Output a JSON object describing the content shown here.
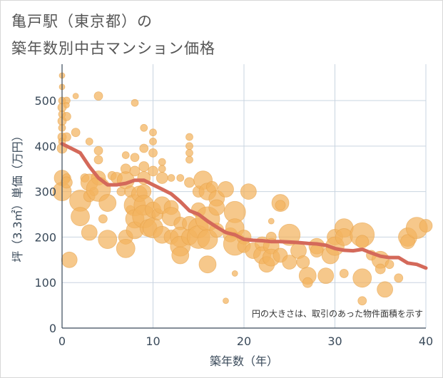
{
  "header": {
    "title_line1": "亀戸駅（東京都）の",
    "title_line2": "築年数別中古マンション価格"
  },
  "chart_data": {
    "type": "scatter",
    "title": "亀戸駅（東京都）の築年数別中古マンション価格",
    "xlabel": "築年数（年）",
    "ylabel": "坪（3.3㎡）単価（万円）",
    "xlim": [
      0,
      40
    ],
    "ylim": [
      0,
      580
    ],
    "x_ticks": [
      "0",
      "10",
      "20",
      "30",
      "40"
    ],
    "y_ticks": [
      "0",
      "100",
      "200",
      "300",
      "400",
      "500"
    ],
    "grid": true,
    "annotation": "円の大きさは、取引のあった物件面積を示す",
    "colors": {
      "points": "#f2b35e",
      "trend": "#d4695a"
    },
    "trend_line": {
      "x": [
        0,
        1,
        2,
        3,
        4,
        5,
        6,
        7,
        8,
        9,
        10,
        11,
        12,
        13,
        14,
        15,
        16,
        17,
        18,
        19,
        20,
        21,
        22,
        23,
        24,
        25,
        26,
        27,
        28,
        29,
        30,
        31,
        32,
        33,
        34,
        35,
        36,
        37,
        38,
        39,
        40
      ],
      "y": [
        405,
        395,
        385,
        355,
        330,
        315,
        315,
        318,
        325,
        325,
        315,
        305,
        295,
        278,
        258,
        250,
        235,
        222,
        210,
        205,
        195,
        193,
        192,
        190,
        190,
        189,
        188,
        186,
        185,
        182,
        175,
        171,
        170,
        173,
        165,
        158,
        155,
        155,
        143,
        140,
        132
      ]
    },
    "points": [
      {
        "x": 0,
        "y": 555,
        "s": 4
      },
      {
        "x": 0,
        "y": 530,
        "s": 4
      },
      {
        "x": 0,
        "y": 500,
        "s": 5
      },
      {
        "x": 0,
        "y": 485,
        "s": 6
      },
      {
        "x": 0,
        "y": 470,
        "s": 5
      },
      {
        "x": 0,
        "y": 455,
        "s": 6
      },
      {
        "x": 0,
        "y": 440,
        "s": 5
      },
      {
        "x": 0,
        "y": 420,
        "s": 6
      },
      {
        "x": 0,
        "y": 410,
        "s": 5
      },
      {
        "x": 0,
        "y": 395,
        "s": 7
      },
      {
        "x": 0,
        "y": 330,
        "s": 11
      },
      {
        "x": 0,
        "y": 300,
        "s": 13
      },
      {
        "x": 0.5,
        "y": 500,
        "s": 5
      },
      {
        "x": 0.5,
        "y": 490,
        "s": 4
      },
      {
        "x": 0.5,
        "y": 465,
        "s": 6
      },
      {
        "x": 0.5,
        "y": 420,
        "s": 6
      },
      {
        "x": 0.5,
        "y": 330,
        "s": 6
      },
      {
        "x": 0.5,
        "y": 320,
        "s": 8
      },
      {
        "x": 0.8,
        "y": 150,
        "s": 11
      },
      {
        "x": 1.5,
        "y": 510,
        "s": 4
      },
      {
        "x": 1.5,
        "y": 430,
        "s": 6
      },
      {
        "x": 2,
        "y": 280,
        "s": 15
      },
      {
        "x": 2,
        "y": 245,
        "s": 13
      },
      {
        "x": 2.5,
        "y": 330,
        "s": 6
      },
      {
        "x": 3,
        "y": 410,
        "s": 5
      },
      {
        "x": 3,
        "y": 320,
        "s": 12
      },
      {
        "x": 3,
        "y": 290,
        "s": 8
      },
      {
        "x": 3,
        "y": 210,
        "s": 11
      },
      {
        "x": 3.5,
        "y": 300,
        "s": 6
      },
      {
        "x": 4,
        "y": 510,
        "s": 6
      },
      {
        "x": 4,
        "y": 390,
        "s": 6
      },
      {
        "x": 4,
        "y": 370,
        "s": 6
      },
      {
        "x": 4,
        "y": 330,
        "s": 10
      },
      {
        "x": 4,
        "y": 305,
        "s": 17
      },
      {
        "x": 4.5,
        "y": 240,
        "s": 6
      },
      {
        "x": 5,
        "y": 275,
        "s": 12
      },
      {
        "x": 5,
        "y": 195,
        "s": 13
      },
      {
        "x": 5.5,
        "y": 335,
        "s": 6
      },
      {
        "x": 6,
        "y": 330,
        "s": 8
      },
      {
        "x": 6.5,
        "y": 300,
        "s": 6
      },
      {
        "x": 7,
        "y": 380,
        "s": 5
      },
      {
        "x": 7,
        "y": 350,
        "s": 7
      },
      {
        "x": 7,
        "y": 325,
        "s": 12
      },
      {
        "x": 7,
        "y": 200,
        "s": 10
      },
      {
        "x": 7,
        "y": 175,
        "s": 13
      },
      {
        "x": 7.5,
        "y": 300,
        "s": 8
      },
      {
        "x": 7.5,
        "y": 260,
        "s": 6
      },
      {
        "x": 8,
        "y": 495,
        "s": 5
      },
      {
        "x": 8,
        "y": 375,
        "s": 6
      },
      {
        "x": 8,
        "y": 345,
        "s": 7
      },
      {
        "x": 8,
        "y": 270,
        "s": 15
      },
      {
        "x": 8,
        "y": 240,
        "s": 13
      },
      {
        "x": 8,
        "y": 215,
        "s": 12
      },
      {
        "x": 8.5,
        "y": 295,
        "s": 11
      },
      {
        "x": 9,
        "y": 440,
        "s": 5
      },
      {
        "x": 9,
        "y": 395,
        "s": 6
      },
      {
        "x": 9,
        "y": 355,
        "s": 7
      },
      {
        "x": 9,
        "y": 330,
        "s": 9
      },
      {
        "x": 9,
        "y": 300,
        "s": 10
      },
      {
        "x": 9,
        "y": 270,
        "s": 14
      },
      {
        "x": 9,
        "y": 245,
        "s": 16
      },
      {
        "x": 9.5,
        "y": 220,
        "s": 12
      },
      {
        "x": 10,
        "y": 430,
        "s": 5
      },
      {
        "x": 10,
        "y": 410,
        "s": 5
      },
      {
        "x": 10,
        "y": 385,
        "s": 6
      },
      {
        "x": 10,
        "y": 345,
        "s": 7
      },
      {
        "x": 10,
        "y": 260,
        "s": 11
      },
      {
        "x": 10,
        "y": 220,
        "s": 14
      },
      {
        "x": 10.5,
        "y": 250,
        "s": 8
      },
      {
        "x": 11,
        "y": 365,
        "s": 5
      },
      {
        "x": 11,
        "y": 350,
        "s": 5
      },
      {
        "x": 11,
        "y": 330,
        "s": 8
      },
      {
        "x": 11,
        "y": 270,
        "s": 12
      },
      {
        "x": 11,
        "y": 205,
        "s": 12
      },
      {
        "x": 12,
        "y": 330,
        "s": 5
      },
      {
        "x": 12,
        "y": 265,
        "s": 10
      },
      {
        "x": 12,
        "y": 245,
        "s": 13
      },
      {
        "x": 12,
        "y": 200,
        "s": 10
      },
      {
        "x": 13,
        "y": 330,
        "s": 5
      },
      {
        "x": 13,
        "y": 230,
        "s": 9
      },
      {
        "x": 13,
        "y": 200,
        "s": 14
      },
      {
        "x": 13,
        "y": 180,
        "s": 14
      },
      {
        "x": 13,
        "y": 160,
        "s": 12
      },
      {
        "x": 14,
        "y": 420,
        "s": 5
      },
      {
        "x": 14,
        "y": 400,
        "s": 5
      },
      {
        "x": 14,
        "y": 385,
        "s": 5
      },
      {
        "x": 14,
        "y": 370,
        "s": 5
      },
      {
        "x": 14,
        "y": 320,
        "s": 7
      },
      {
        "x": 14,
        "y": 230,
        "s": 10
      },
      {
        "x": 14,
        "y": 200,
        "s": 11
      },
      {
        "x": 15,
        "y": 300,
        "s": 8
      },
      {
        "x": 15,
        "y": 260,
        "s": 10
      },
      {
        "x": 15,
        "y": 220,
        "s": 14
      },
      {
        "x": 15,
        "y": 200,
        "s": 16
      },
      {
        "x": 15.5,
        "y": 325,
        "s": 13
      },
      {
        "x": 16,
        "y": 300,
        "s": 12
      },
      {
        "x": 16,
        "y": 240,
        "s": 17
      },
      {
        "x": 16,
        "y": 195,
        "s": 14
      },
      {
        "x": 16,
        "y": 140,
        "s": 12
      },
      {
        "x": 16.5,
        "y": 310,
        "s": 8
      },
      {
        "x": 17,
        "y": 285,
        "s": 11
      },
      {
        "x": 17,
        "y": 265,
        "s": 11
      },
      {
        "x": 17,
        "y": 215,
        "s": 10
      },
      {
        "x": 18,
        "y": 305,
        "s": 11
      },
      {
        "x": 18,
        "y": 60,
        "s": 4
      },
      {
        "x": 18.5,
        "y": 205,
        "s": 10
      },
      {
        "x": 19,
        "y": 255,
        "s": 15
      },
      {
        "x": 19,
        "y": 220,
        "s": 13
      },
      {
        "x": 19,
        "y": 185,
        "s": 16
      },
      {
        "x": 19,
        "y": 120,
        "s": 4
      },
      {
        "x": 20,
        "y": 200,
        "s": 10
      },
      {
        "x": 20,
        "y": 180,
        "s": 9
      },
      {
        "x": 20.5,
        "y": 300,
        "s": 11
      },
      {
        "x": 21,
        "y": 170,
        "s": 11
      },
      {
        "x": 22,
        "y": 185,
        "s": 10
      },
      {
        "x": 22,
        "y": 160,
        "s": 12
      },
      {
        "x": 22.5,
        "y": 140,
        "s": 11
      },
      {
        "x": 23,
        "y": 235,
        "s": 4
      },
      {
        "x": 23,
        "y": 200,
        "s": 7
      },
      {
        "x": 23,
        "y": 180,
        "s": 11
      },
      {
        "x": 23,
        "y": 155,
        "s": 12
      },
      {
        "x": 24,
        "y": 275,
        "s": 12
      },
      {
        "x": 24,
        "y": 270,
        "s": 7
      },
      {
        "x": 24,
        "y": 160,
        "s": 10
      },
      {
        "x": 25,
        "y": 205,
        "s": 15
      },
      {
        "x": 25,
        "y": 145,
        "s": 10
      },
      {
        "x": 26,
        "y": 170,
        "s": 11
      },
      {
        "x": 26.5,
        "y": 145,
        "s": 9
      },
      {
        "x": 27,
        "y": 115,
        "s": 12
      },
      {
        "x": 27,
        "y": 100,
        "s": 7
      },
      {
        "x": 28,
        "y": 180,
        "s": 11
      },
      {
        "x": 28,
        "y": 170,
        "s": 9
      },
      {
        "x": 29,
        "y": 115,
        "s": 11
      },
      {
        "x": 29.5,
        "y": 160,
        "s": 12
      },
      {
        "x": 30,
        "y": 200,
        "s": 11
      },
      {
        "x": 30,
        "y": 180,
        "s": 13
      },
      {
        "x": 31,
        "y": 220,
        "s": 13
      },
      {
        "x": 31,
        "y": 200,
        "s": 12
      },
      {
        "x": 31,
        "y": 120,
        "s": 6
      },
      {
        "x": 33,
        "y": 205,
        "s": 17
      },
      {
        "x": 33,
        "y": 190,
        "s": 9
      },
      {
        "x": 33,
        "y": 110,
        "s": 13
      },
      {
        "x": 33,
        "y": 60,
        "s": 6
      },
      {
        "x": 34,
        "y": 160,
        "s": 7
      },
      {
        "x": 35,
        "y": 150,
        "s": 12
      },
      {
        "x": 35,
        "y": 130,
        "s": 7
      },
      {
        "x": 35.5,
        "y": 85,
        "s": 11
      },
      {
        "x": 36,
        "y": 140,
        "s": 6
      },
      {
        "x": 37,
        "y": 110,
        "s": 6
      },
      {
        "x": 38,
        "y": 200,
        "s": 13
      },
      {
        "x": 38,
        "y": 190,
        "s": 10
      },
      {
        "x": 39,
        "y": 220,
        "s": 15
      },
      {
        "x": 40,
        "y": 225,
        "s": 9
      }
    ]
  }
}
